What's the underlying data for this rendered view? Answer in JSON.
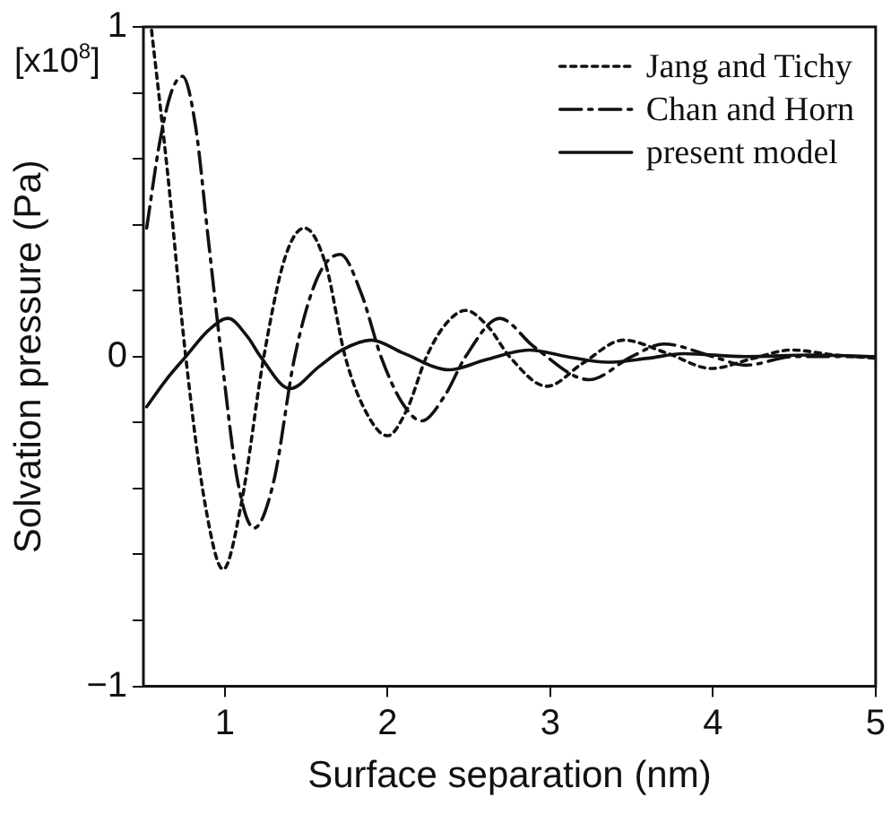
{
  "chart_data": {
    "type": "line",
    "xlabel": "Surface separation (nm)",
    "ylabel": "Solvation pressure (Pa)",
    "annotations": [
      "[x10$^{8}$]"
    ],
    "xlim": [
      0.5,
      5
    ],
    "xticks": [
      1,
      2,
      3,
      4,
      5
    ],
    "ylim": [
      -1,
      1
    ],
    "yticks": [
      -1,
      {
        "value": -0.8,
        "label": null
      },
      {
        "value": -0.6,
        "label": null
      },
      {
        "value": -0.4,
        "label": null
      },
      {
        "value": -0.2,
        "label": null
      },
      0,
      {
        "value": 0.2,
        "label": null
      },
      {
        "value": 0.4,
        "label": null
      },
      {
        "value": 0.6,
        "label": null
      },
      {
        "value": 0.8,
        "label": null
      },
      1
    ],
    "grid": false,
    "legend": "top right",
    "marker": "none",
    "series": [
      {
        "name": "Jang and Tichy",
        "color": "#111111",
        "line_style": "dotted",
        "x": [
          0.55,
          0.65,
          0.76,
          0.88,
          0.99,
          1.1,
          1.24,
          1.37,
          1.49,
          1.62,
          1.74,
          1.87,
          2.0,
          2.12,
          2.24,
          2.36,
          2.48,
          2.62,
          2.75,
          2.98,
          3.2,
          3.45,
          3.72,
          3.99,
          4.25,
          4.48,
          4.75,
          5.0
        ],
        "values": [
          0.99,
          0.55,
          0.0,
          -0.45,
          -0.645,
          -0.45,
          0.0,
          0.3,
          0.39,
          0.28,
          0.0,
          -0.17,
          -0.24,
          -0.16,
          0.0,
          0.1,
          0.14,
          0.09,
          0.0,
          -0.09,
          -0.02,
          0.05,
          0.01,
          -0.036,
          -0.005,
          0.02,
          0.005,
          -0.005
        ]
      },
      {
        "name": "Chan and Horn",
        "color": "#111111",
        "line_style": "dashed",
        "x": [
          0.52,
          0.6,
          0.67,
          0.74,
          0.82,
          0.9,
          0.98,
          1.08,
          1.18,
          1.3,
          1.43,
          1.57,
          1.71,
          1.84,
          1.96,
          2.09,
          2.21,
          2.35,
          2.48,
          2.69,
          2.9,
          3.24,
          3.5,
          3.7,
          4.0,
          4.2,
          4.5,
          5.0
        ],
        "values": [
          0.39,
          0.65,
          0.8,
          0.85,
          0.7,
          0.35,
          0.0,
          -0.38,
          -0.52,
          -0.38,
          0.0,
          0.24,
          0.31,
          0.19,
          0.0,
          -0.14,
          -0.195,
          -0.12,
          0.0,
          0.116,
          0.03,
          -0.07,
          0.0,
          0.038,
          0.0,
          -0.026,
          0.0,
          0.0
        ]
      },
      {
        "name": "present model",
        "color": "#111111",
        "line_style": "solid",
        "x": [
          0.52,
          0.64,
          0.76,
          0.9,
          1.02,
          1.14,
          1.22,
          1.4,
          1.58,
          1.72,
          1.9,
          2.1,
          2.38,
          2.6,
          2.87,
          3.1,
          3.35,
          3.6,
          3.82,
          4.2,
          4.6,
          5.0
        ],
        "values": [
          -0.152,
          -0.07,
          0.0,
          0.08,
          0.116,
          0.06,
          0.0,
          -0.097,
          -0.03,
          0.02,
          0.05,
          0.01,
          -0.04,
          -0.01,
          0.02,
          0.0,
          -0.017,
          -0.005,
          0.009,
          0.0,
          0.005,
          0.0
        ]
      }
    ]
  }
}
